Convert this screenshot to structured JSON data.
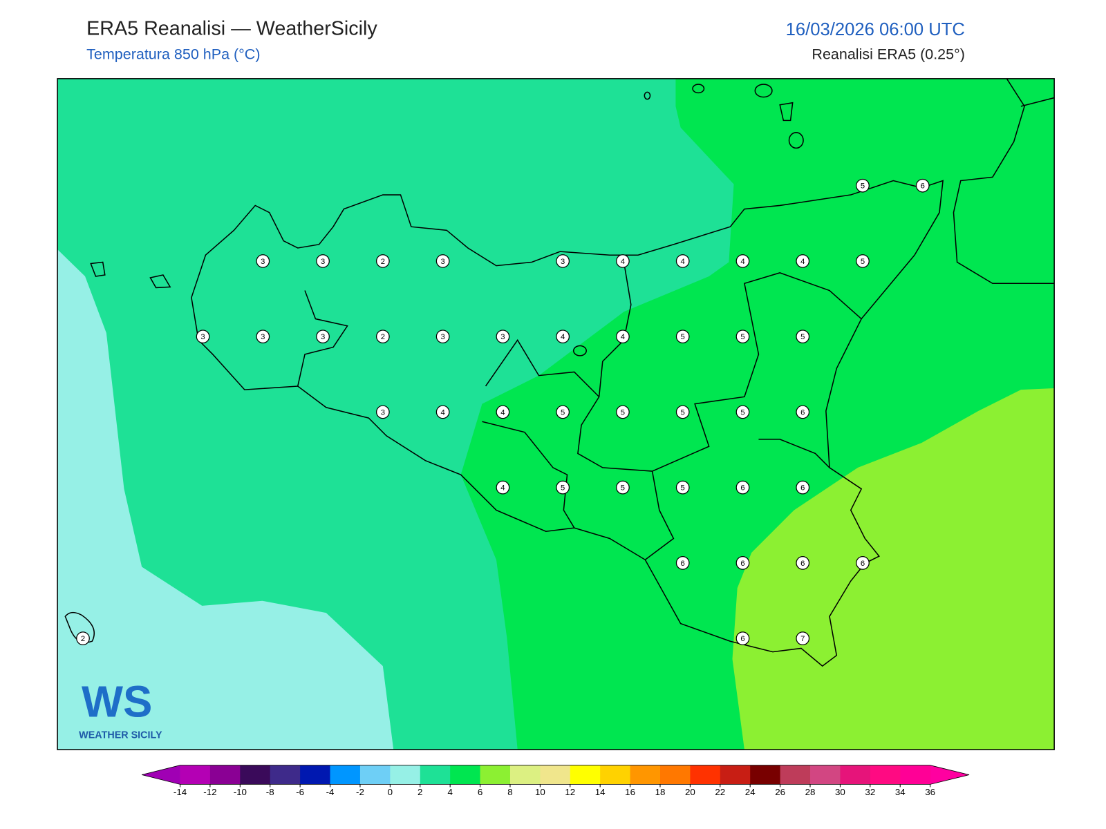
{
  "header": {
    "title": "ERA5 Reanalisi — WeatherSicily",
    "subtitle": "Temperatura 850 hPa (°C)",
    "date": "16/03/2026 06:00 UTC",
    "source": "Reanalisi ERA5 (0.25°)"
  },
  "stations": {
    "rows": [
      [
        null,
        null,
        null,
        null,
        null,
        null,
        null,
        null,
        null,
        null,
        null,
        null,
        null,
        5,
        6
      ],
      [
        null,
        null,
        null,
        3,
        3,
        2,
        3,
        null,
        3,
        4,
        4,
        4,
        4,
        5,
        null
      ],
      [
        null,
        null,
        3,
        3,
        3,
        2,
        3,
        3,
        4,
        4,
        5,
        5,
        5,
        null,
        null
      ],
      [
        null,
        null,
        null,
        null,
        null,
        3,
        4,
        4,
        5,
        5,
        5,
        5,
        6,
        null,
        null
      ],
      [
        null,
        null,
        null,
        null,
        null,
        null,
        null,
        4,
        5,
        5,
        5,
        6,
        6,
        null,
        null
      ],
      [
        null,
        null,
        null,
        null,
        null,
        null,
        null,
        null,
        null,
        null,
        6,
        6,
        6,
        6,
        null
      ],
      [
        2,
        null,
        null,
        null,
        null,
        null,
        null,
        null,
        null,
        null,
        null,
        6,
        7,
        null,
        null
      ]
    ]
  },
  "colorbar": {
    "ticks": [
      -14,
      -12,
      -10,
      -8,
      -6,
      -4,
      -2,
      0,
      2,
      4,
      6,
      8,
      10,
      12,
      14,
      16,
      18,
      20,
      22,
      24,
      26,
      28,
      30,
      32,
      34,
      36
    ],
    "colors": [
      "#b400b4",
      "#8a0094",
      "#3a0a5a",
      "#3e2a8a",
      "#0018b0",
      "#0096ff",
      "#6ecff6",
      "#96f0e6",
      "#1ee196",
      "#00e650",
      "#8cf032",
      "#dcf082",
      "#f0e68c",
      "#ffff00",
      "#ffd200",
      "#ff9600",
      "#ff7800",
      "#ff3200",
      "#c81e14",
      "#780000",
      "#be3c5a",
      "#d24682",
      "#e6147a",
      "#ff0a82",
      "#ff0096"
    ],
    "under_color": "#a000b4",
    "over_color": "#ff00a0"
  },
  "logo": {
    "mark": "WS",
    "text": "WEATHER SICILY"
  }
}
